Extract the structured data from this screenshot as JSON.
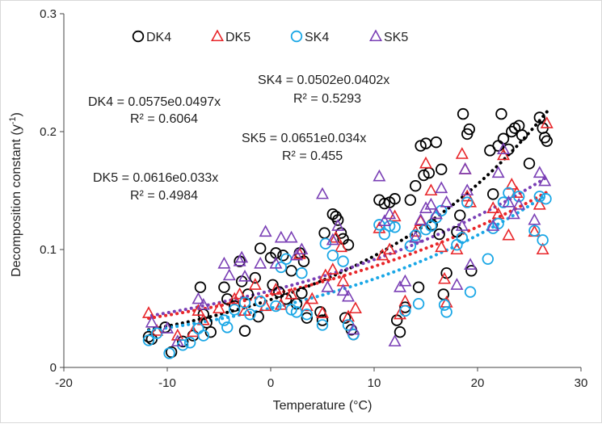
{
  "chart_data": {
    "type": "scatter",
    "xlabel": "Temperature (°C)",
    "ylabel": "Decomposition constant (y",
    "ylabel_sup": "-1",
    "ylabel_close": ")",
    "xlim": [
      -20,
      30
    ],
    "ylim": [
      0,
      0.3
    ],
    "x_ticks": [
      "-20",
      "-10",
      "0",
      "10",
      "20",
      "30"
    ],
    "y_ticks": [
      "0",
      "0.1",
      "0.2",
      "0.3"
    ],
    "grid": false,
    "legend_position": "top",
    "series": [
      {
        "name": "DK4",
        "marker": "circle",
        "color": "#000000",
        "fit": {
          "a": 0.0575,
          "b": 0.0497,
          "equation": "DK4 = 0.0575e0.0497x",
          "r2": "R² = 0.6064"
        },
        "points": [
          [
            -11.8,
            0.026
          ],
          [
            -11.5,
            0.024
          ],
          [
            -10.2,
            0.034
          ],
          [
            -9.6,
            0.013
          ],
          [
            -8.5,
            0.022
          ],
          [
            -7.5,
            0.027
          ],
          [
            -6.8,
            0.068
          ],
          [
            -6.5,
            0.045
          ],
          [
            -6.2,
            0.038
          ],
          [
            -5.8,
            0.03
          ],
          [
            -4.5,
            0.068
          ],
          [
            -4.2,
            0.058
          ],
          [
            -3.5,
            0.052
          ],
          [
            -3.0,
            0.09
          ],
          [
            -2.8,
            0.073
          ],
          [
            -2.5,
            0.031
          ],
          [
            -2.2,
            0.062
          ],
          [
            -1.5,
            0.076
          ],
          [
            -1.2,
            0.043
          ],
          [
            -1.0,
            0.101
          ],
          [
            0.0,
            0.093
          ],
          [
            0.2,
            0.07
          ],
          [
            0.5,
            0.097
          ],
          [
            0.8,
            0.064
          ],
          [
            1.2,
            0.095
          ],
          [
            1.5,
            0.058
          ],
          [
            2.0,
            0.082
          ],
          [
            2.5,
            0.054
          ],
          [
            2.8,
            0.097
          ],
          [
            3.0,
            0.063
          ],
          [
            3.2,
            0.09
          ],
          [
            3.5,
            0.042
          ],
          [
            4.8,
            0.047
          ],
          [
            5.0,
            0.04
          ],
          [
            5.2,
            0.114
          ],
          [
            6.0,
            0.13
          ],
          [
            6.3,
            0.128
          ],
          [
            6.5,
            0.125
          ],
          [
            6.8,
            0.114
          ],
          [
            7.0,
            0.109
          ],
          [
            7.2,
            0.042
          ],
          [
            7.5,
            0.104
          ],
          [
            7.8,
            0.032
          ],
          [
            8.0,
            0.028
          ],
          [
            10.5,
            0.142
          ],
          [
            11.0,
            0.139
          ],
          [
            11.5,
            0.14
          ],
          [
            12.0,
            0.143
          ],
          [
            12.2,
            0.04
          ],
          [
            12.5,
            0.03
          ],
          [
            13.0,
            0.051
          ],
          [
            13.5,
            0.142
          ],
          [
            14.0,
            0.154
          ],
          [
            14.3,
            0.068
          ],
          [
            14.5,
            0.188
          ],
          [
            14.8,
            0.163
          ],
          [
            15.0,
            0.19
          ],
          [
            15.3,
            0.165
          ],
          [
            15.6,
            0.121
          ],
          [
            16.0,
            0.191
          ],
          [
            16.3,
            0.113
          ],
          [
            16.5,
            0.168
          ],
          [
            16.7,
            0.062
          ],
          [
            17.0,
            0.08
          ],
          [
            18.0,
            0.115
          ],
          [
            18.3,
            0.129
          ],
          [
            18.6,
            0.215
          ],
          [
            19.0,
            0.198
          ],
          [
            19.2,
            0.202
          ],
          [
            19.4,
            0.082
          ],
          [
            21.2,
            0.184
          ],
          [
            21.5,
            0.147
          ],
          [
            22.0,
            0.188
          ],
          [
            22.3,
            0.215
          ],
          [
            22.5,
            0.194
          ],
          [
            23.0,
            0.185
          ],
          [
            23.3,
            0.2
          ],
          [
            23.6,
            0.203
          ],
          [
            24.0,
            0.205
          ],
          [
            24.3,
            0.197
          ],
          [
            25.0,
            0.173
          ],
          [
            26.0,
            0.212
          ],
          [
            26.3,
            0.203
          ],
          [
            26.5,
            0.195
          ],
          [
            26.7,
            0.192
          ]
        ]
      },
      {
        "name": "DK5",
        "marker": "triangle",
        "color": "#e8262a",
        "fit": {
          "a": 0.0616,
          "b": 0.033,
          "equation": "DK5 = 0.0616e0.033x",
          "r2": "R² = 0.4984"
        },
        "points": [
          [
            -11.8,
            0.046
          ],
          [
            -11.0,
            0.031
          ],
          [
            -9.0,
            0.027
          ],
          [
            -7.5,
            0.03
          ],
          [
            -7.0,
            0.048
          ],
          [
            -6.5,
            0.04
          ],
          [
            -5.0,
            0.05
          ],
          [
            -3.5,
            0.058
          ],
          [
            -3.0,
            0.062
          ],
          [
            -2.5,
            0.048
          ],
          [
            -1.5,
            0.07
          ],
          [
            -0.5,
            0.052
          ],
          [
            0.5,
            0.066
          ],
          [
            1.0,
            0.053
          ],
          [
            2.0,
            0.062
          ],
          [
            2.8,
            0.096
          ],
          [
            3.5,
            0.052
          ],
          [
            4.0,
            0.058
          ],
          [
            5.0,
            0.046
          ],
          [
            5.3,
            0.078
          ],
          [
            6.0,
            0.083
          ],
          [
            6.3,
            0.11
          ],
          [
            6.8,
            0.102
          ],
          [
            7.0,
            0.073
          ],
          [
            7.5,
            0.043
          ],
          [
            8.2,
            0.05
          ],
          [
            10.5,
            0.118
          ],
          [
            10.8,
            0.095
          ],
          [
            11.5,
            0.1
          ],
          [
            12.0,
            0.128
          ],
          [
            12.5,
            0.045
          ],
          [
            13.0,
            0.056
          ],
          [
            14.0,
            0.115
          ],
          [
            14.5,
            0.124
          ],
          [
            15.0,
            0.173
          ],
          [
            15.5,
            0.15
          ],
          [
            16.0,
            0.13
          ],
          [
            16.5,
            0.102
          ],
          [
            16.8,
            0.075
          ],
          [
            17.0,
            0.055
          ],
          [
            18.0,
            0.1
          ],
          [
            18.5,
            0.181
          ],
          [
            18.8,
            0.168
          ],
          [
            19.0,
            0.145
          ],
          [
            19.3,
            0.14
          ],
          [
            21.5,
            0.135
          ],
          [
            22.0,
            0.13
          ],
          [
            22.5,
            0.18
          ],
          [
            23.0,
            0.112
          ],
          [
            23.3,
            0.155
          ],
          [
            23.8,
            0.148
          ],
          [
            25.5,
            0.115
          ],
          [
            26.0,
            0.138
          ],
          [
            26.3,
            0.1
          ],
          [
            26.7,
            0.207
          ]
        ]
      },
      {
        "name": "SK4",
        "marker": "circle",
        "color": "#1aa7e6",
        "fit": {
          "a": 0.0502,
          "b": 0.0402,
          "equation": "SK4 = 0.0502e0.0402x",
          "r2": "R² = 0.5293"
        },
        "points": [
          [
            -11.8,
            0.023
          ],
          [
            -11.0,
            0.029
          ],
          [
            -9.8,
            0.012
          ],
          [
            -8.5,
            0.019
          ],
          [
            -7.8,
            0.021
          ],
          [
            -7.0,
            0.033
          ],
          [
            -6.5,
            0.027
          ],
          [
            -4.5,
            0.04
          ],
          [
            -4.2,
            0.034
          ],
          [
            -3.5,
            0.049
          ],
          [
            -2.5,
            0.055
          ],
          [
            -2.0,
            0.045
          ],
          [
            -1.0,
            0.056
          ],
          [
            0.5,
            0.052
          ],
          [
            1.0,
            0.085
          ],
          [
            1.5,
            0.092
          ],
          [
            2.0,
            0.049
          ],
          [
            2.5,
            0.047
          ],
          [
            3.0,
            0.08
          ],
          [
            3.5,
            0.045
          ],
          [
            5.0,
            0.036
          ],
          [
            5.3,
            0.105
          ],
          [
            6.0,
            0.095
          ],
          [
            7.0,
            0.09
          ],
          [
            7.5,
            0.036
          ],
          [
            8.0,
            0.028
          ],
          [
            10.5,
            0.121
          ],
          [
            11.0,
            0.113
          ],
          [
            11.5,
            0.12
          ],
          [
            12.0,
            0.119
          ],
          [
            13.0,
            0.048
          ],
          [
            13.5,
            0.103
          ],
          [
            14.0,
            0.112
          ],
          [
            14.3,
            0.054
          ],
          [
            15.0,
            0.117
          ],
          [
            15.5,
            0.12
          ],
          [
            16.0,
            0.127
          ],
          [
            16.5,
            0.133
          ],
          [
            16.8,
            0.053
          ],
          [
            17.0,
            0.047
          ],
          [
            18.0,
            0.104
          ],
          [
            18.5,
            0.11
          ],
          [
            19.0,
            0.14
          ],
          [
            19.3,
            0.064
          ],
          [
            21.0,
            0.092
          ],
          [
            21.5,
            0.118
          ],
          [
            22.0,
            0.122
          ],
          [
            22.5,
            0.14
          ],
          [
            23.0,
            0.148
          ],
          [
            24.0,
            0.145
          ],
          [
            25.5,
            0.116
          ],
          [
            26.0,
            0.145
          ],
          [
            26.3,
            0.108
          ],
          [
            26.6,
            0.143
          ]
        ]
      },
      {
        "name": "SK5",
        "marker": "triangle",
        "color": "#7a3fb5",
        "fit": {
          "a": 0.0651,
          "b": 0.034,
          "equation": "SK5 = 0.0651e0.034x",
          "r2": "R² = 0.455"
        },
        "points": [
          [
            -11.5,
            0.038
          ],
          [
            -10.0,
            0.033
          ],
          [
            -9.0,
            0.022
          ],
          [
            -7.0,
            0.058
          ],
          [
            -6.5,
            0.053
          ],
          [
            -4.5,
            0.088
          ],
          [
            -4.0,
            0.078
          ],
          [
            -3.0,
            0.09
          ],
          [
            -2.8,
            0.093
          ],
          [
            -2.5,
            0.077
          ],
          [
            -1.0,
            0.088
          ],
          [
            -0.5,
            0.115
          ],
          [
            0.5,
            0.088
          ],
          [
            1.0,
            0.11
          ],
          [
            2.0,
            0.11
          ],
          [
            2.5,
            0.095
          ],
          [
            3.0,
            0.1
          ],
          [
            5.0,
            0.147
          ],
          [
            5.5,
            0.068
          ],
          [
            6.0,
            0.108
          ],
          [
            6.5,
            0.12
          ],
          [
            7.0,
            0.065
          ],
          [
            7.5,
            0.06
          ],
          [
            8.0,
            0.032
          ],
          [
            10.5,
            0.162
          ],
          [
            11.0,
            0.124
          ],
          [
            11.5,
            0.13
          ],
          [
            12.0,
            0.022
          ],
          [
            12.5,
            0.068
          ],
          [
            13.0,
            0.073
          ],
          [
            14.0,
            0.11
          ],
          [
            14.5,
            0.125
          ],
          [
            15.0,
            0.135
          ],
          [
            15.5,
            0.138
          ],
          [
            16.0,
            0.13
          ],
          [
            16.5,
            0.152
          ],
          [
            17.0,
            0.14
          ],
          [
            18.0,
            0.07
          ],
          [
            18.5,
            0.12
          ],
          [
            18.8,
            0.168
          ],
          [
            19.0,
            0.15
          ],
          [
            19.3,
            0.087
          ],
          [
            21.5,
            0.12
          ],
          [
            22.0,
            0.165
          ],
          [
            22.5,
            0.185
          ],
          [
            23.0,
            0.14
          ],
          [
            23.5,
            0.13
          ],
          [
            24.0,
            0.138
          ],
          [
            25.5,
            0.125
          ],
          [
            26.0,
            0.165
          ],
          [
            26.5,
            0.158
          ]
        ]
      }
    ]
  }
}
